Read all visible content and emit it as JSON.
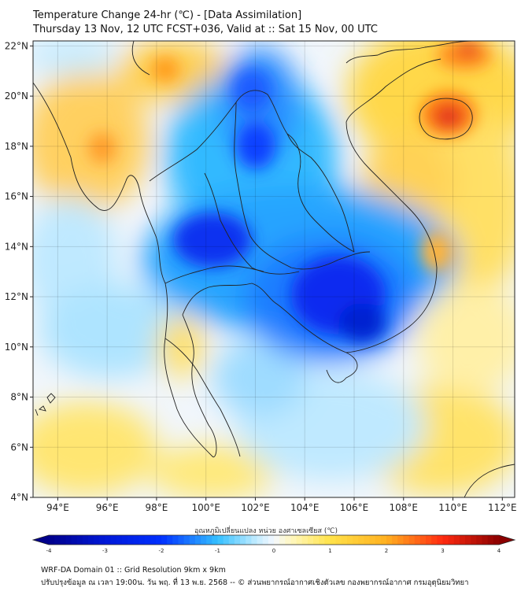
{
  "title": {
    "line1": "Temperature Change 24-hr (℃) - [Data Assimilation]",
    "line2": "Thursday 13 Nov, 12 UTC FCST+036, Valid at :: Sat 15 Nov, 00 UTC"
  },
  "map": {
    "lat_labels": [
      "22°N",
      "20°N",
      "18°N",
      "16°N",
      "14°N",
      "12°N",
      "10°N",
      "8°N",
      "6°N",
      "4°N"
    ],
    "lon_labels": [
      "94°E",
      "96°E",
      "98°E",
      "100°E",
      "102°E",
      "104°E",
      "106°E",
      "108°E",
      "110°E",
      "112°E"
    ],
    "extent": {
      "lon_min": 93,
      "lon_max": 112.5,
      "lat_min": 4,
      "lat_max": 22.2
    }
  },
  "colorbar": {
    "title": "อุณหภูมิเปลี่ยนแปลง หน่วย องศาเซลเซียส (℃)",
    "tick_labels": [
      "-4",
      "-3",
      "-2",
      "-1",
      "0",
      "1",
      "2",
      "3",
      "4"
    ],
    "min": -4,
    "max": 4,
    "colors": {
      "cold_deep": "#00008b",
      "cold": "#0030ff",
      "cool": "#35c0ff",
      "neutral": "#f4f8ff",
      "warm": "#ffe24a",
      "hot": "#ff8a1a",
      "hot_deep": "#8b0000"
    }
  },
  "footer": {
    "line1": "WRF-DA Domain 01 :: Grid Resolution 9km x 9km",
    "line2": "ปรับปรุงข้อมูล ณ เวลา 19:00น. วัน พฤ. ที่ 13 พ.ย. 2568 -- © ส่วนพยากรณ์อากาศเชิงตัวเลข กองพยากรณ์อากาศ กรมอุตุนิยมวิทยา"
  }
}
